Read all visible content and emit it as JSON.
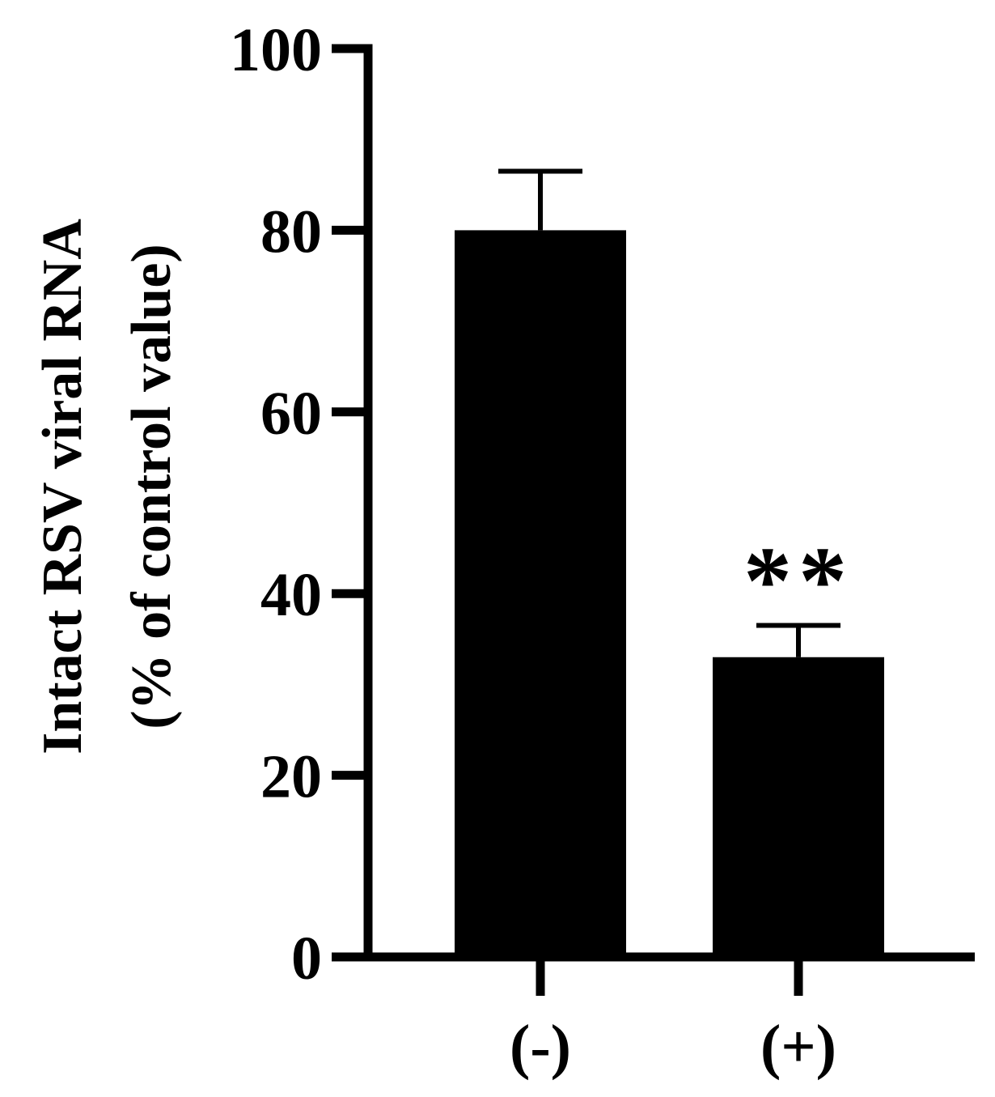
{
  "chart_data": {
    "type": "bar",
    "categories": [
      "(-)",
      "(+)"
    ],
    "values": [
      80,
      33
    ],
    "errors": [
      6.5,
      3.5
    ],
    "ylabel_lines": [
      "Intact RSV viral RNA",
      "(% of control value)"
    ],
    "xlabel": "",
    "title": "",
    "ylim": [
      0,
      100
    ],
    "yticks": [
      0,
      20,
      40,
      60,
      80,
      100
    ],
    "annotations": [
      {
        "category": "(+)",
        "text": "**"
      }
    ],
    "colors": {
      "bar": "#000000",
      "axis": "#000000",
      "background": "#ffffff"
    },
    "grid": false,
    "legend": "none"
  }
}
